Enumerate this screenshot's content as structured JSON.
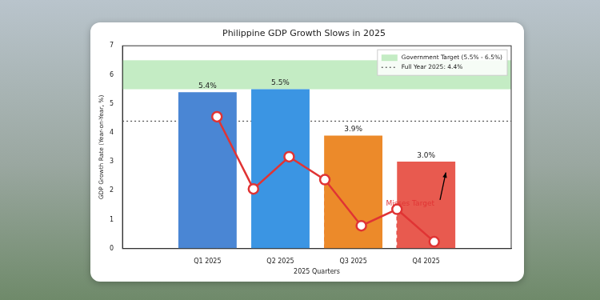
{
  "chart_data": {
    "type": "bar",
    "title": "Philippine GDP Growth Slows in 2025",
    "x_label": "2025 Quarters",
    "y_label": "GDP Growth Rate (Year-on-Year, %)",
    "categories": [
      "Q1 2025",
      "Q2 2025",
      "Q3 2025",
      "Q4 2025"
    ],
    "values": [
      5.4,
      5.5,
      3.9,
      3.0
    ],
    "value_labels": [
      "5.4%",
      "5.5%",
      "3.9%",
      "3.0%"
    ],
    "colors": [
      "#4a86d4",
      "#3b95e3",
      "#ec8a2a",
      "#e85a4f"
    ],
    "data_labels": true,
    "ylim": [
      0,
      7
    ],
    "yticks": [
      0,
      1,
      2,
      3,
      4,
      5,
      6,
      7
    ],
    "grid": false,
    "legend": "upper right",
    "series": [
      {
        "type": "line",
        "color": "#e03434",
        "marker": "circle",
        "x": [
          0.13,
          0.63,
          1.12,
          1.61,
          2.11,
          2.6,
          3.11
        ],
        "values": [
          4.55,
          2.06,
          3.17,
          2.38,
          0.79,
          1.36,
          0.24
        ]
      }
    ],
    "bands": [
      {
        "label": "Government Target (5.5% - 6.5%)",
        "range": [
          5.5,
          6.5
        ],
        "color": "#93dc93"
      }
    ],
    "reference_lines": [
      {
        "label": "Full Year 2025: 4.4%",
        "value": 4.4,
        "color": "#333333",
        "line_style": "dotted"
      }
    ],
    "annotations": [
      {
        "text": "Misses Target",
        "x": 2.78,
        "y": 1.55,
        "color": "#e03434",
        "arrow_from": [
          3.19,
          1.68
        ],
        "arrow_to": [
          3.27,
          2.63
        ]
      }
    ]
  }
}
